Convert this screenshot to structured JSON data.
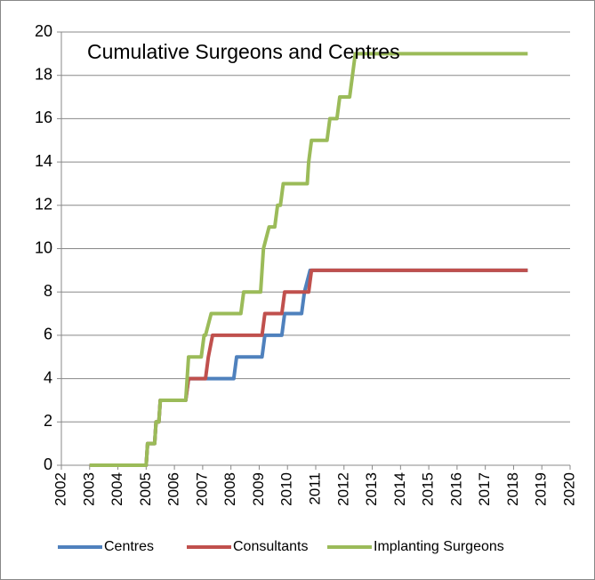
{
  "chart_data": {
    "type": "line",
    "title": "Cumulative Surgeons and Centres",
    "xlim": [
      2002,
      2020
    ],
    "xticks": [
      2002,
      2003,
      2004,
      2005,
      2006,
      2007,
      2008,
      2009,
      2010,
      2011,
      2012,
      2013,
      2014,
      2015,
      2016,
      2017,
      2018,
      2019,
      2020
    ],
    "ylim": [
      0,
      20
    ],
    "yticks": [
      0,
      2,
      4,
      6,
      8,
      10,
      12,
      14,
      16,
      18,
      20
    ],
    "grid": true,
    "legend": "bottom",
    "series": [
      {
        "name": "Centres",
        "color": "#4f81bd",
        "x": [
          2003,
          2005,
          2005.05,
          2005.3,
          2005.35,
          2005.45,
          2005.5,
          2006.4,
          2006.5,
          2008.1,
          2008.2,
          2009.1,
          2009.2,
          2009.8,
          2009.9,
          2010.5,
          2010.6,
          2010.8,
          2018.5
        ],
        "values": [
          0,
          0,
          1,
          1,
          2,
          2,
          3,
          3,
          4,
          4,
          5,
          5,
          6,
          6,
          7,
          7,
          8,
          9,
          9
        ]
      },
      {
        "name": "Consultants",
        "color": "#c0504d",
        "x": [
          2003,
          2005,
          2005.05,
          2005.3,
          2005.35,
          2005.45,
          2005.5,
          2006.4,
          2006.5,
          2007.1,
          2007.2,
          2007.35,
          2009.1,
          2009.2,
          2009.8,
          2009.9,
          2010.75,
          2010.85,
          2018.5
        ],
        "values": [
          0,
          0,
          1,
          1,
          2,
          2,
          3,
          3,
          4,
          4,
          5,
          6,
          6,
          7,
          7,
          8,
          8,
          9,
          9
        ]
      },
      {
        "name": "Implanting Surgeons",
        "color": "#9bbb59",
        "x": [
          2003,
          2005,
          2005.05,
          2005.3,
          2005.35,
          2005.45,
          2005.5,
          2006.4,
          2006.45,
          2006.5,
          2006.95,
          2007.05,
          2007.1,
          2007.3,
          2008.35,
          2008.45,
          2009.05,
          2009.1,
          2009.15,
          2009.35,
          2009.55,
          2009.65,
          2009.75,
          2009.85,
          2010.7,
          2010.75,
          2010.85,
          2011.4,
          2011.5,
          2011.75,
          2011.85,
          2012.2,
          2012.3,
          2012.4,
          2018.5
        ],
        "values": [
          0,
          0,
          1,
          1,
          2,
          2,
          3,
          3,
          4,
          5,
          5,
          6,
          6,
          7,
          7,
          8,
          8,
          9,
          10,
          11,
          11,
          12,
          12,
          13,
          13,
          14,
          15,
          15,
          16,
          16,
          17,
          17,
          18,
          19,
          19
        ]
      }
    ]
  }
}
